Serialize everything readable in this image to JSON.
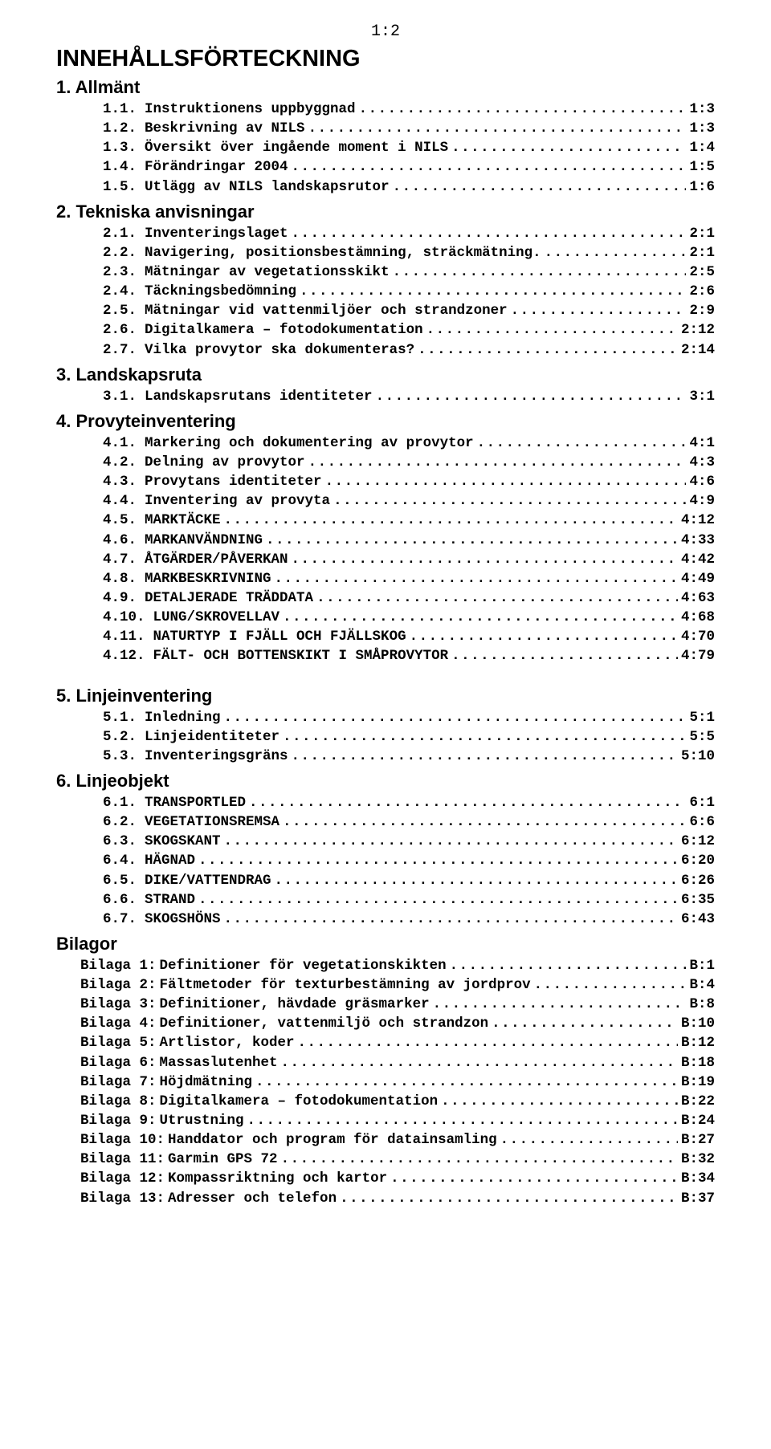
{
  "page_number": "1:2",
  "main_title": "INNEHÅLLSFÖRTECKNING",
  "colors": {
    "background": "#ffffff",
    "text": "#000000"
  },
  "typography": {
    "heading_family": "Arial",
    "heading_weight": "bold",
    "mono_family": "Courier New",
    "main_title_size_pt": 22,
    "section_title_size_pt": 17,
    "entry_size_pt": 13
  },
  "sections": [
    {
      "title": "1. Allmänt",
      "entries": [
        {
          "num": "1.1.",
          "label": "Instruktionens uppbyggnad",
          "page": "1:3"
        },
        {
          "num": "1.2.",
          "label": "Beskrivning av NILS",
          "page": "1:3"
        },
        {
          "num": "1.3.",
          "label": "Översikt över ingående moment i NILS",
          "page": "1:4"
        },
        {
          "num": "1.4.",
          "label": "Förändringar 2004",
          "page": "1:5"
        },
        {
          "num": "1.5.",
          "label": "Utlägg av NILS landskapsrutor",
          "page": "1:6"
        }
      ]
    },
    {
      "title": "2. Tekniska anvisningar",
      "entries": [
        {
          "num": "2.1.",
          "label": "Inventeringslaget",
          "page": "2:1"
        },
        {
          "num": "2.2.",
          "label": "Navigering, positionsbestämning, sträckmätning.",
          "page": "2:1"
        },
        {
          "num": "2.3.",
          "label": "Mätningar av vegetationsskikt",
          "page": "2:5"
        },
        {
          "num": "2.4.",
          "label": "Täckningsbedömning",
          "page": "2:6"
        },
        {
          "num": "2.5.",
          "label": "Mätningar vid vattenmiljöer och strandzoner",
          "page": "2:9"
        },
        {
          "num": "2.6.",
          "label": "Digitalkamera – fotodokumentation",
          "page": "2:12"
        },
        {
          "num": "2.7.",
          "label": "Vilka provytor ska dokumenteras?",
          "page": "2:14"
        }
      ]
    },
    {
      "title": "3. Landskapsruta",
      "entries": [
        {
          "num": "3.1.",
          "label": "Landskapsrutans identiteter",
          "page": "3:1"
        }
      ]
    },
    {
      "title": "4. Provyteinventering",
      "entries": [
        {
          "num": "4.1.",
          "label": "Markering och dokumentering av provytor",
          "page": "4:1"
        },
        {
          "num": "4.2.",
          "label": "Delning av provytor",
          "page": "4:3"
        },
        {
          "num": "4.3.",
          "label": "Provytans identiteter",
          "page": "4:6"
        },
        {
          "num": "4.4.",
          "label": "Inventering av provyta",
          "page": "4:9"
        },
        {
          "num": "4.5.",
          "label": "MARKTÄCKE",
          "page": "4:12"
        },
        {
          "num": "4.6.",
          "label": "MARKANVÄNDNING",
          "page": "4:33"
        },
        {
          "num": "4.7.",
          "label": "ÅTGÄRDER/PÅVERKAN",
          "page": "4:42"
        },
        {
          "num": "4.8.",
          "label": "MARKBESKRIVNING",
          "page": "4:49"
        },
        {
          "num": "4.9.",
          "label": "DETALJERADE TRÄDDATA",
          "page": "4:63"
        },
        {
          "num": "4.10.",
          "label": "LUNG/SKROVELLAV",
          "page": "4:68"
        },
        {
          "num": "4.11.",
          "label": "NATURTYP I FJÄLL OCH FJÄLLSKOG",
          "page": "4:70"
        },
        {
          "num": "4.12.",
          "label": "FÄLT- OCH BOTTENSKIKT I SMÅPROVYTOR",
          "page": "4:79"
        }
      ]
    },
    {
      "title": "5. Linjeinventering",
      "extra_top": true,
      "entries": [
        {
          "num": "5.1.",
          "label": "Inledning",
          "page": "5:1"
        },
        {
          "num": "5.2.",
          "label": "Linjeidentiteter",
          "page": "5:5"
        },
        {
          "num": "5.3.",
          "label": "Inventeringsgräns",
          "page": "5:10"
        }
      ]
    },
    {
      "title": "6. Linjeobjekt",
      "entries": [
        {
          "num": "6.1.",
          "label": "TRANSPORTLED",
          "page": "6:1"
        },
        {
          "num": "6.2.",
          "label": "VEGETATIONSREMSA",
          "page": "6:6"
        },
        {
          "num": "6.3.",
          "label": "SKOGSKANT",
          "page": "6:12"
        },
        {
          "num": "6.4.",
          "label": "HÄGNAD",
          "page": "6:20"
        },
        {
          "num": "6.5.",
          "label": "DIKE/VATTENDRAG",
          "page": "6:26"
        },
        {
          "num": "6.6.",
          "label": "STRAND",
          "page": "6:35"
        },
        {
          "num": "6.7.",
          "label": "SKOGSHÖNS",
          "page": "6:43"
        }
      ]
    },
    {
      "title": "Bilagor",
      "bilaga": true,
      "entries": [
        {
          "num": "Bilaga 1:",
          "label": "Definitioner för vegetationskikten",
          "page": "B:1"
        },
        {
          "num": "Bilaga 2:",
          "label": "Fältmetoder för texturbestämning av jordprov",
          "page": "B:4"
        },
        {
          "num": "Bilaga 3:",
          "label": "Definitioner, hävdade gräsmarker",
          "page": "B:8"
        },
        {
          "num": "Bilaga 4:",
          "label": "Definitioner, vattenmiljö och strandzon",
          "page": "B:10"
        },
        {
          "num": "Bilaga 5:",
          "label": "Artlistor, koder",
          "page": "B:12"
        },
        {
          "num": "Bilaga 6:",
          "label": "Massaslutenhet",
          "page": "B:18"
        },
        {
          "num": "Bilaga 7:",
          "label": "Höjdmätning",
          "page": "B:19"
        },
        {
          "num": "Bilaga 8:",
          "label": "Digitalkamera – fotodokumentation",
          "page": "B:22"
        },
        {
          "num": "Bilaga 9:",
          "label": "Utrustning",
          "page": "B:24"
        },
        {
          "num": "Bilaga 10:",
          "label": "Handdator och program för datainsamling",
          "page": "B:27"
        },
        {
          "num": "Bilaga 11:",
          "label": "Garmin GPS 72",
          "page": "B:32"
        },
        {
          "num": "Bilaga 12:",
          "label": "Kompassriktning och kartor",
          "page": "B:34"
        },
        {
          "num": "Bilaga 13:",
          "label": "Adresser och telefon",
          "page": "B:37"
        }
      ]
    }
  ]
}
